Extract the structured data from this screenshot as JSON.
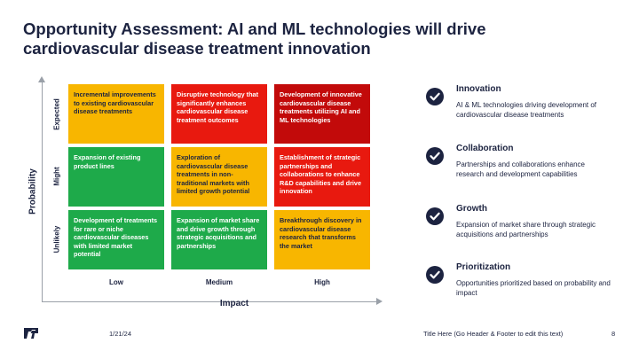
{
  "slide": {
    "title": "Opportunity Assessment: AI and ML technologies will drive cardiovascular disease treatment innovation"
  },
  "matrix": {
    "y_axis_title": "Probability",
    "x_axis_title": "Impact",
    "rows": [
      "Expected",
      "Might",
      "Unlikely"
    ],
    "columns": [
      "Low",
      "Medium",
      "High"
    ],
    "cells": [
      {
        "text": "Incremental improvements to existing cardiovascular disease treatments",
        "color": "#f8b600"
      },
      {
        "text": "Disruptive technology that significantly enhances cardiovascular disease treatment outcomes",
        "color": "#e8190f"
      },
      {
        "text": "Development of innovative cardiovascular disease treatments utilizing AI and ML technologies",
        "color": "#c20a0a"
      },
      {
        "text": "Expansion of existing product lines",
        "color": "#1eaa4a"
      },
      {
        "text": "Exploration of cardiovascular disease treatments in non-traditional markets with limited growth potential",
        "color": "#f8b600"
      },
      {
        "text": "Establishment of strategic partnerships and collaborations to enhance R&D capabilities and drive innovation",
        "color": "#e8190f"
      },
      {
        "text": "Development of treatments for rare or niche cardiovascular diseases with limited market potential",
        "color": "#1eaa4a"
      },
      {
        "text": "Expansion of market share and drive growth through strategic acquisitions and partnerships",
        "color": "#1eaa4a"
      },
      {
        "text": "Breakthrough discovery in cardiovascular disease research that transforms the market",
        "color": "#f8b600"
      }
    ]
  },
  "highlights": [
    {
      "title": "Innovation",
      "description": "AI & ML technologies driving development of cardiovascular disease treatments",
      "icon": "check-circle-icon"
    },
    {
      "title": "Collaboration",
      "description": "Partnerships and collaborations enhance research and development capabilities",
      "icon": "check-circle-icon"
    },
    {
      "title": "Growth",
      "description": "Expansion of market share through strategic acquisitions and partnerships",
      "icon": "check-circle-icon"
    },
    {
      "title": "Prioritization",
      "description": "Opportunities prioritized based on probability and impact",
      "icon": "check-circle-icon"
    }
  ],
  "footer": {
    "date": "1/21/24",
    "text": "Title Here (Go Header & Footer to edit this text)",
    "page_number": "8",
    "logo_icon": "brand-logo-icon"
  },
  "colors": {
    "navy": "#1c2340",
    "yellow": "#f8b600",
    "red": "#e8190f",
    "dark_red": "#c20a0a",
    "green": "#1eaa4a"
  }
}
